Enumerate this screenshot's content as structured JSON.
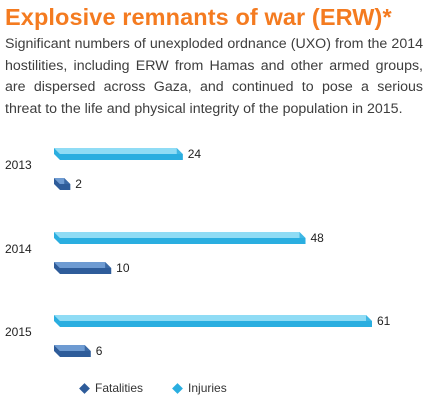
{
  "heading": {
    "title": "Explosive remnants of war (ERW)*",
    "body": "Significant numbers of unexploded ordnance (UXO) from the 2014 hostilities, including ERW from Hamas and other armed groups, are dispersed across Gaza, and continued to pose a serious threat to the life and physical integrity of the population in 2015."
  },
  "colors": {
    "title": "#f47b20",
    "injuries": "#2aaee0",
    "injuries_light": "#8fdcf5",
    "fatalities": "#2e5c9a",
    "fatalities_light": "#6e9bd2"
  },
  "legend": {
    "fatalities_label": "Fatalities",
    "injuries_label": "Injuries"
  },
  "chart_data": {
    "type": "bar",
    "orientation": "horizontal",
    "categories": [
      "2013",
      "2014",
      "2015"
    ],
    "series": [
      {
        "name": "Injuries",
        "values": [
          24,
          48,
          61
        ]
      },
      {
        "name": "Fatalities",
        "values": [
          2,
          10,
          6
        ]
      }
    ],
    "xlim": [
      0,
      61
    ],
    "grid": false,
    "legend_position": "bottom"
  }
}
